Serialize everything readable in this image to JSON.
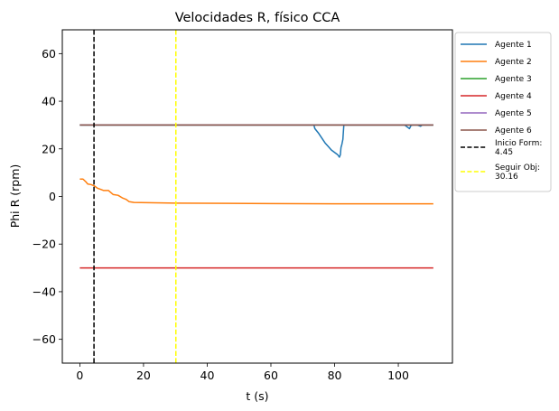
{
  "chart_data": {
    "type": "line",
    "title": "Velocidades R, físico CCA",
    "xlabel": "t (s)",
    "ylabel": "Phi R (rpm)",
    "xlim": [
      -5.5,
      117
    ],
    "ylim": [
      -70,
      70
    ],
    "xticks": [
      0,
      20,
      40,
      60,
      80,
      100
    ],
    "yticks": [
      -60,
      -40,
      -20,
      0,
      20,
      40,
      60
    ],
    "grid": false,
    "legend_position": "outside-right",
    "series": [
      {
        "name": "Agente 1",
        "color": "#1f77b4",
        "x": [
          0,
          73.5,
          73.8,
          75,
          76,
          77,
          78,
          79,
          80,
          81,
          81.5,
          81.8,
          82,
          82.3,
          82.6,
          82.7,
          82.9,
          102,
          102.5,
          103,
          103.5,
          104,
          104.5,
          106,
          107,
          107.5,
          111
        ],
        "y": [
          30,
          30,
          28.5,
          26.5,
          24.5,
          22.5,
          21,
          19.5,
          18.5,
          17.5,
          16.5,
          17.5,
          20.5,
          22,
          24,
          26,
          30,
          30,
          29.5,
          29,
          28.5,
          29.8,
          30,
          30,
          29.5,
          30,
          30
        ]
      },
      {
        "name": "Agente 2",
        "color": "#ff7f0e",
        "x": [
          0,
          1,
          1.8,
          2.5,
          3.5,
          4.5,
          5.5,
          6.5,
          7.5,
          9,
          10.5,
          12,
          13.5,
          14.5,
          15.5,
          17,
          30,
          60,
          80,
          111
        ],
        "y": [
          7.3,
          7.3,
          6.3,
          5.2,
          5,
          4.5,
          3.5,
          3,
          2.5,
          2.5,
          0.8,
          0.5,
          -0.7,
          -1.2,
          -2.2,
          -2.5,
          -2.8,
          -3,
          -3.1,
          -3.1
        ]
      },
      {
        "name": "Agente 3",
        "color": "#2ca02c",
        "x": [
          0,
          111
        ],
        "y": [
          30,
          30
        ]
      },
      {
        "name": "Agente 4",
        "color": "#d62728",
        "x": [
          0,
          111
        ],
        "y": [
          -30,
          -30
        ]
      },
      {
        "name": "Agente 5",
        "color": "#9467bd",
        "x": [
          0,
          111
        ],
        "y": [
          30,
          30
        ]
      },
      {
        "name": "Agente 6",
        "color": "#8c564b",
        "x": [
          0,
          111
        ],
        "y": [
          30,
          30
        ]
      }
    ],
    "vlines": [
      {
        "label": "Inicio Form:\n4.45",
        "label_lines": [
          "Inicio Form:",
          "4.45"
        ],
        "x": 4.45,
        "color": "#000000",
        "style": "dashed"
      },
      {
        "label": "Seguir Obj:\n30.16",
        "label_lines": [
          "Seguir Obj:",
          "30.16"
        ],
        "x": 30.16,
        "color": "#ffff00",
        "style": "dashed"
      }
    ]
  }
}
